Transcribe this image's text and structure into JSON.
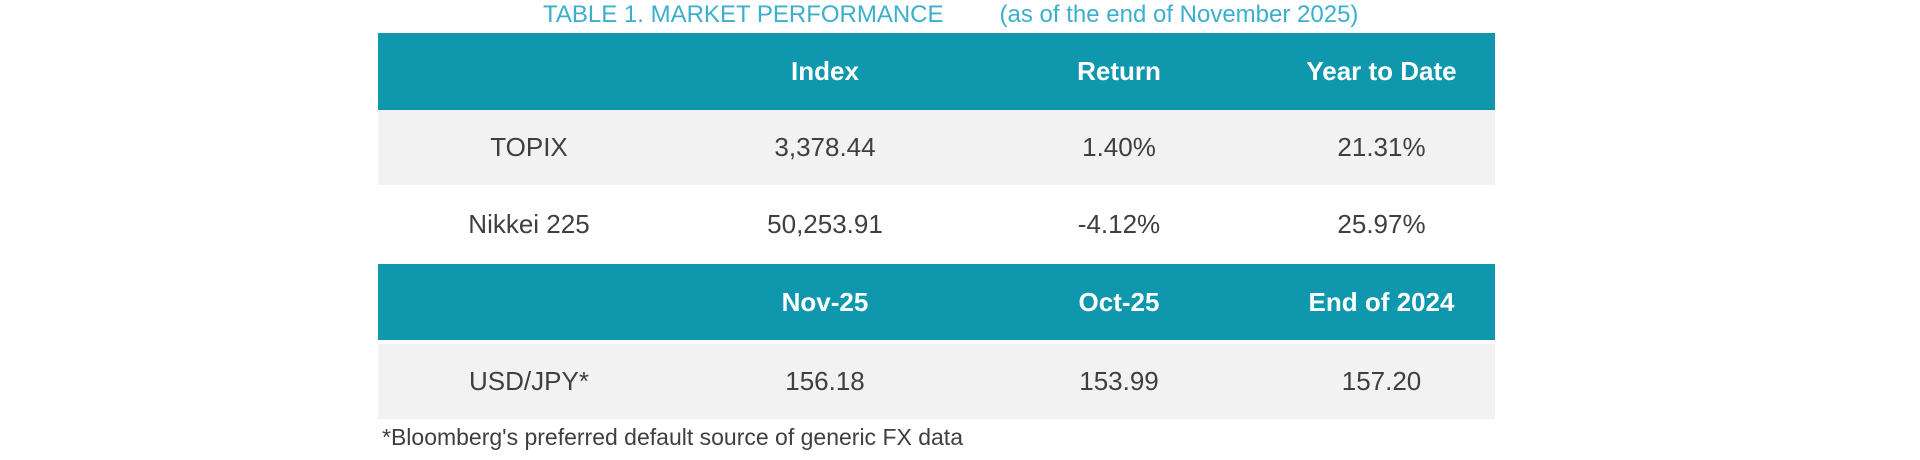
{
  "colors": {
    "header_teal": "#0e97ad",
    "title_cyan": "#3bafcd",
    "row_gray": "#f2f2f2",
    "text_dark": "#3f3f3f",
    "header_text": "#ffffff"
  },
  "chart_data": {
    "type": "table",
    "title": "TABLE 1. MARKET PERFORMANCE",
    "subtitle": "(as of the end of November 2025)",
    "tables": [
      {
        "headers": [
          "Index",
          "Return",
          "Year to Date"
        ],
        "rows": [
          {
            "label": "TOPIX",
            "values": [
              "3,378.44",
              "1.40%",
              "21.31%"
            ]
          },
          {
            "label": "Nikkei 225",
            "values": [
              "50,253.91",
              "-4.12%",
              "25.97%"
            ]
          }
        ]
      },
      {
        "headers": [
          "Nov-25",
          "Oct-25",
          "End of 2024"
        ],
        "rows": [
          {
            "label": "USD/JPY*",
            "values": [
              "156.18",
              "153.99",
              "157.20"
            ]
          }
        ]
      }
    ],
    "footnote": "*Bloomberg's preferred default source of generic FX data"
  }
}
